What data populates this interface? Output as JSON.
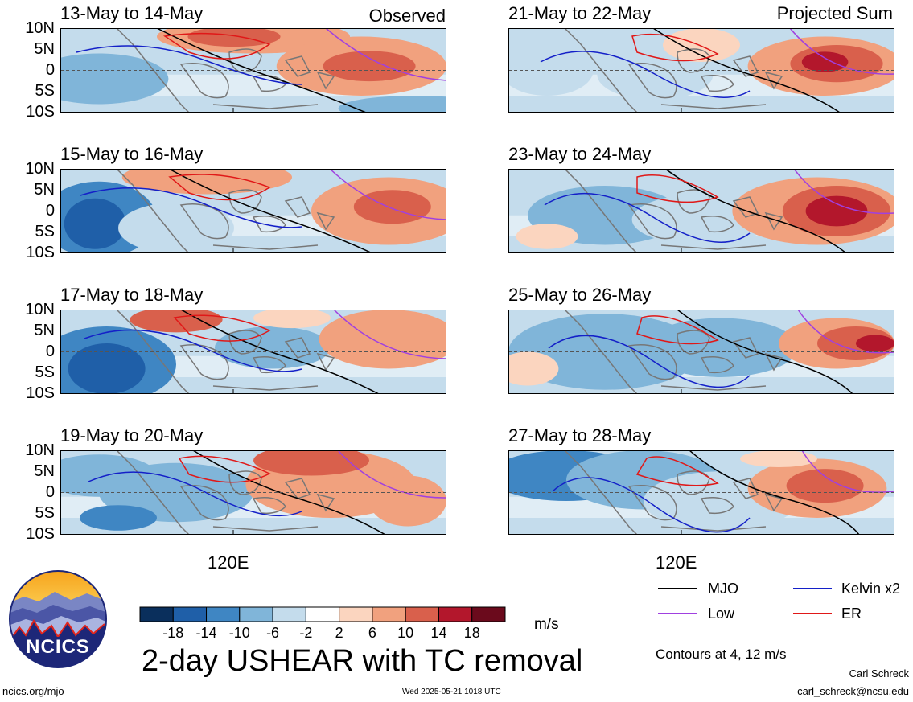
{
  "header": {
    "observed_label": "Observed",
    "projected_label": "Projected Sum"
  },
  "chart_data": {
    "type": "heatmap",
    "variable": "2-day USHEAR with TC removal",
    "units": "m/s",
    "x_tick": "120E",
    "y_ticks": [
      "10N",
      "5N",
      "0",
      "5S",
      "10S"
    ],
    "ylim": [
      -10,
      10
    ],
    "panels": [
      {
        "title": "13-May to 14-May",
        "group": "Observed"
      },
      {
        "title": "15-May to 16-May",
        "group": "Observed"
      },
      {
        "title": "17-May to 18-May",
        "group": "Observed"
      },
      {
        "title": "19-May to 20-May",
        "group": "Observed"
      },
      {
        "title": "21-May to 22-May",
        "group": "Projected Sum"
      },
      {
        "title": "23-May to 24-May",
        "group": "Projected Sum"
      },
      {
        "title": "25-May to 26-May",
        "group": "Projected Sum"
      },
      {
        "title": "27-May to 28-May",
        "group": "Projected Sum"
      }
    ],
    "colorbar": {
      "levels": [
        "-18",
        "-14",
        "-10",
        "-6",
        "-2",
        "2",
        "6",
        "10",
        "14",
        "18"
      ],
      "colors": [
        "#0a2f5c",
        "#1f5fa8",
        "#3f86c3",
        "#80b5d9",
        "#c4dcec",
        "#ffffff",
        "#fbd5bf",
        "#f1a17e",
        "#d9604c",
        "#b3172c",
        "#6b0a1c"
      ]
    },
    "legend": [
      {
        "label": "MJO",
        "color": "#000000"
      },
      {
        "label": "Kelvin x2",
        "color": "#1420c8"
      },
      {
        "label": "Low",
        "color": "#a040e0"
      },
      {
        "label": "ER",
        "color": "#e01818"
      }
    ],
    "contours_note": "Contours at 4, 12 m/s"
  },
  "footer": {
    "logo_text": "NCICS",
    "main_title": "2-day USHEAR with TC removal",
    "units": "m/s",
    "url": "ncics.org/mjo",
    "timestamp": "Wed 2025-05-21 1018 UTC",
    "author": "Carl Schreck",
    "email": "carl_schreck@ncsu.edu"
  }
}
